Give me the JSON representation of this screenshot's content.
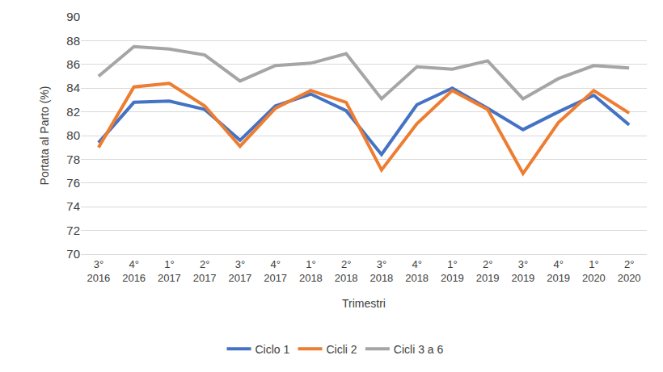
{
  "chart_data": {
    "type": "line",
    "x_label": "Trimestri",
    "y_label": "Portata al Parto (%)",
    "categories": [
      "3°\n2016",
      "4°\n2016",
      "1°\n2017",
      "2°\n2017",
      "3°\n2017",
      "4°\n2017",
      "1°\n2018",
      "2°\n2018",
      "3°\n2018",
      "4°\n2018",
      "1°\n2019",
      "2°\n2019",
      "3°\n2019",
      "4°\n2019",
      "1°\n2020",
      "2°\n2020"
    ],
    "series": [
      {
        "name": "Ciclo 1",
        "color": "#4472c4",
        "values": [
          79.4,
          82.8,
          82.9,
          82.2,
          79.6,
          82.5,
          83.5,
          82.1,
          78.4,
          82.6,
          84.0,
          82.3,
          80.5,
          82.0,
          83.4,
          80.9
        ]
      },
      {
        "name": "Cicli 2",
        "color": "#ed7d31",
        "values": [
          79.0,
          84.1,
          84.4,
          82.5,
          79.1,
          82.3,
          83.8,
          82.8,
          77.1,
          81.0,
          83.8,
          82.2,
          76.8,
          81.1,
          83.8,
          81.9
        ]
      },
      {
        "name": "Cicli 3 a 6",
        "color": "#a5a5a5",
        "values": [
          85.0,
          87.5,
          87.3,
          86.8,
          84.6,
          85.9,
          86.1,
          86.9,
          83.1,
          85.8,
          85.6,
          86.3,
          83.1,
          84.8,
          85.9,
          85.7
        ]
      }
    ],
    "ylim": [
      70,
      90
    ],
    "yticks": [
      70,
      72,
      74,
      76,
      78,
      80,
      82,
      84,
      86,
      88,
      90
    ],
    "grid": true,
    "legend": "bottom"
  }
}
